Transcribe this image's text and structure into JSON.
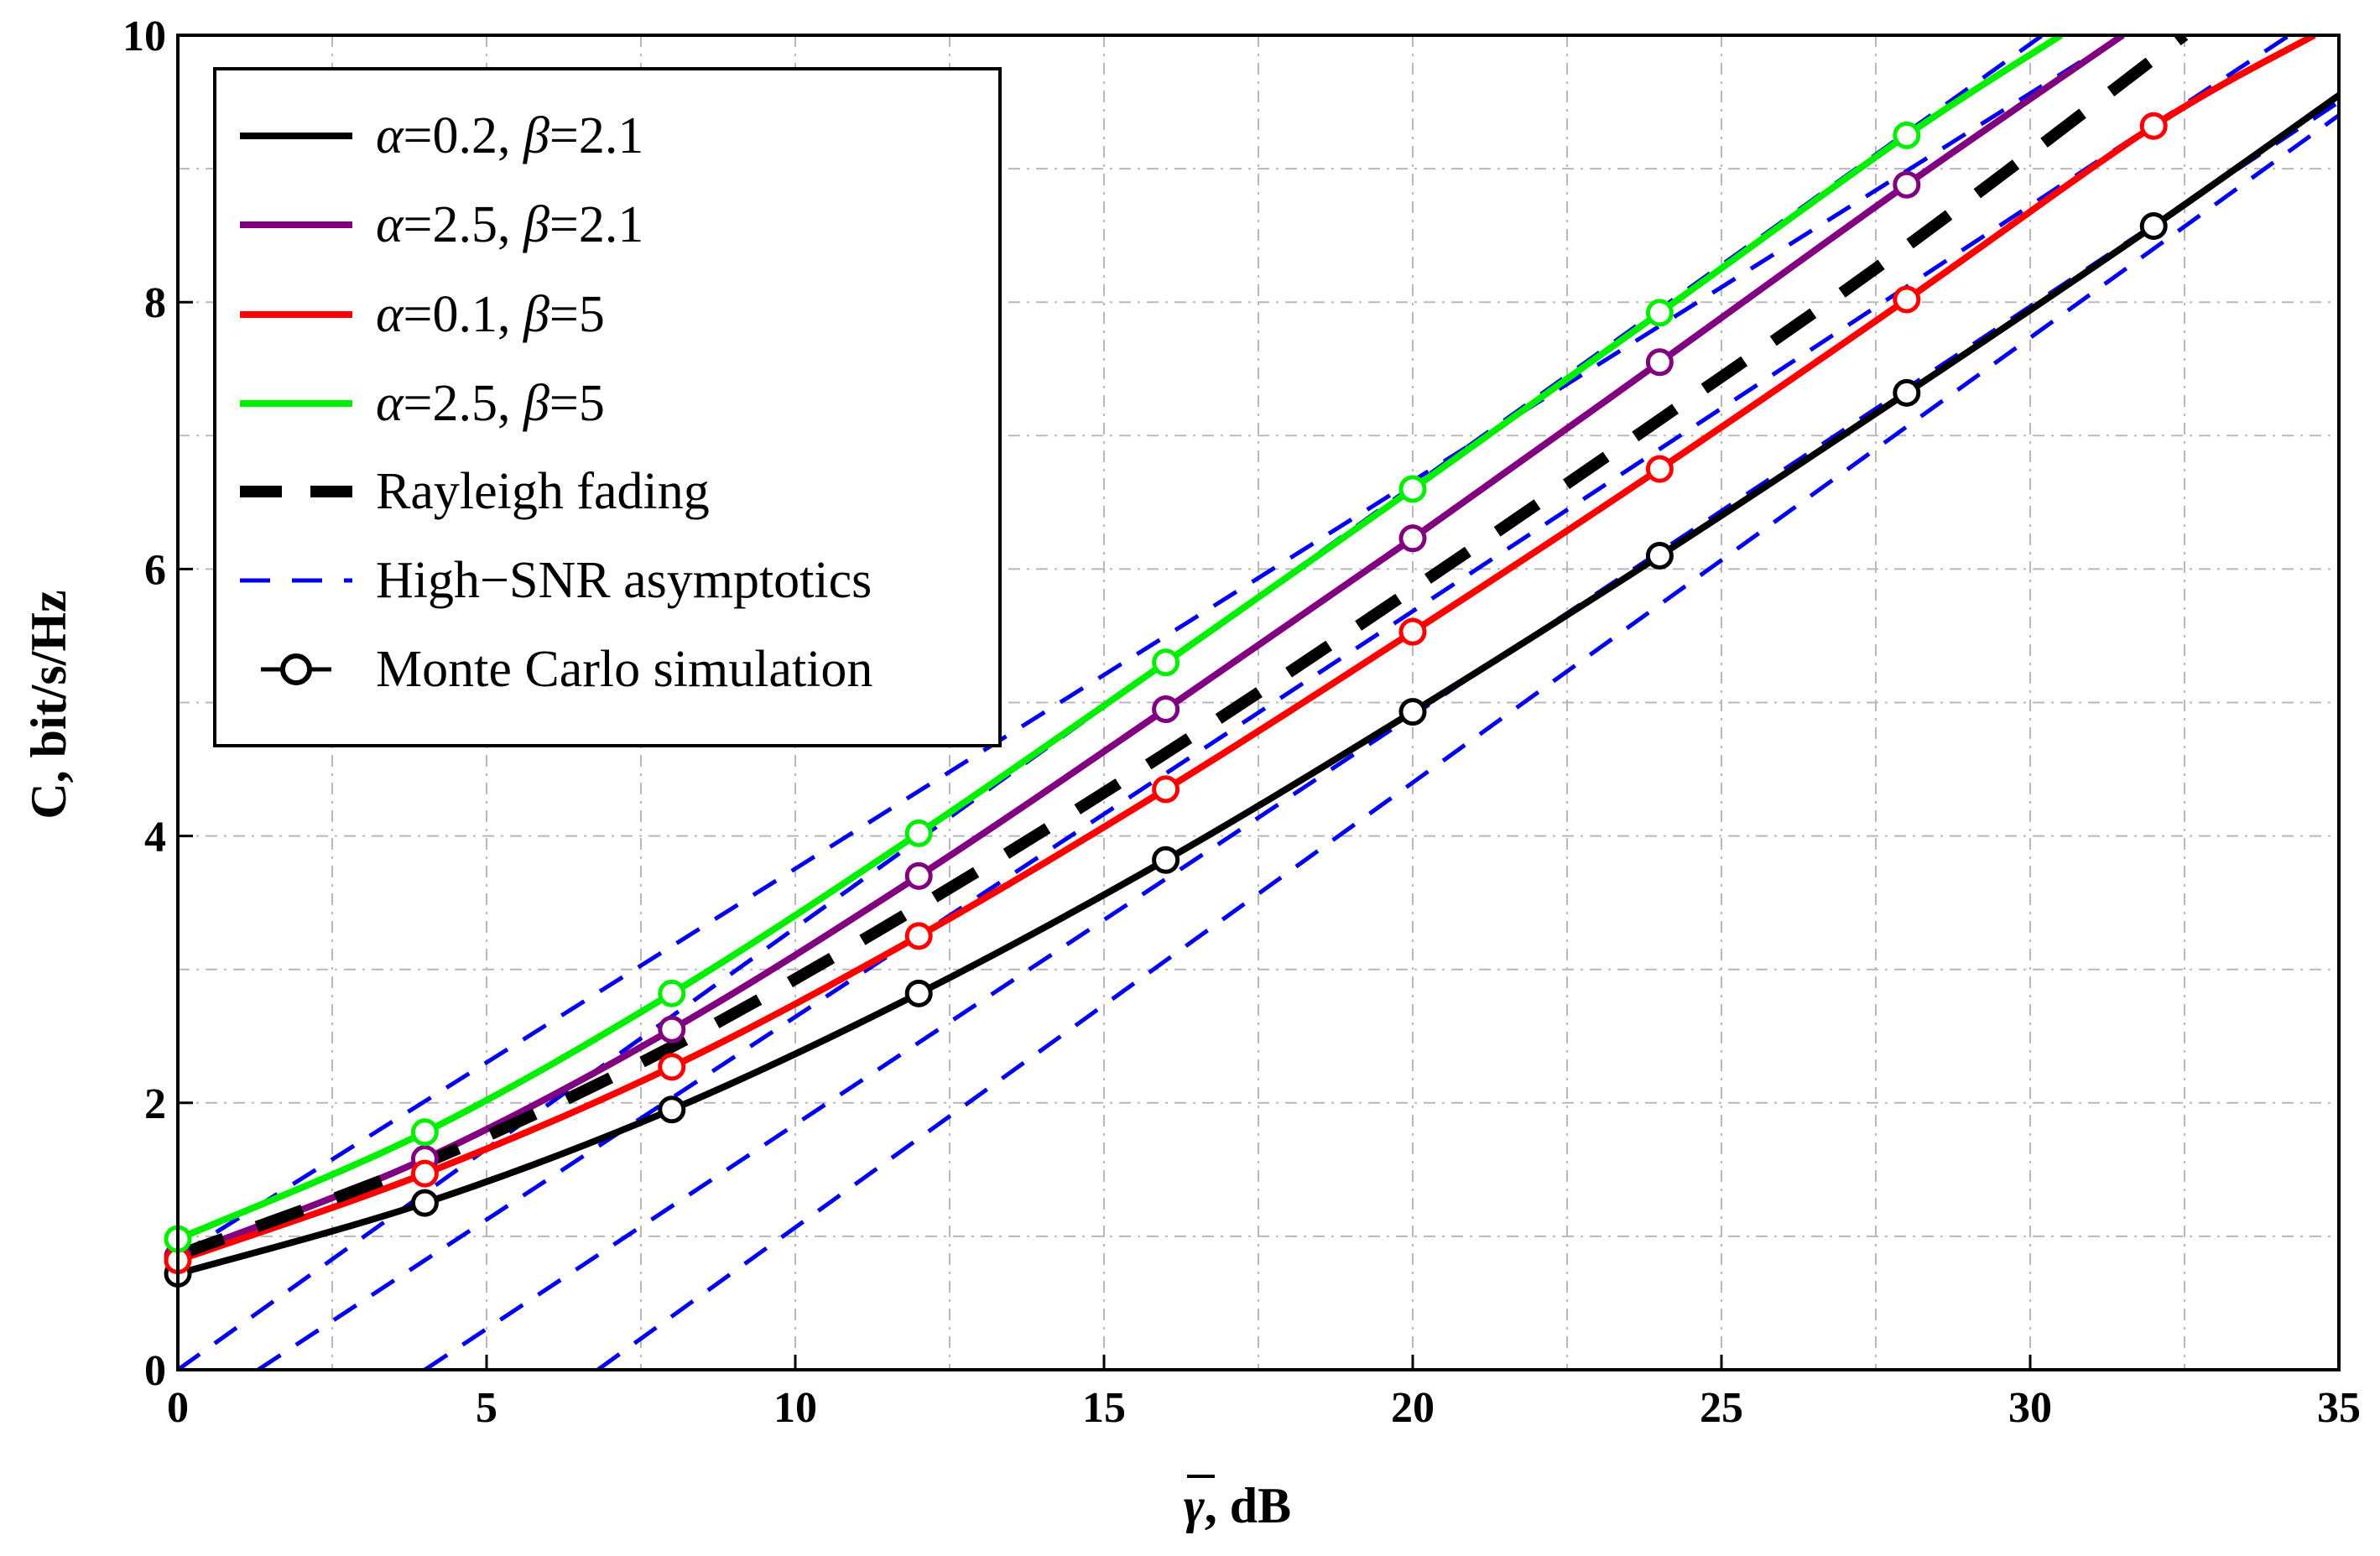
{
  "chart_data": {
    "type": "line",
    "title": "",
    "xlabel": ", dB",
    "xlabel_symbol": "γ",
    "ylabel": "C, bit/s/Hz",
    "xlim": [
      0,
      35
    ],
    "ylim": [
      0,
      10
    ],
    "x_ticks": [
      0,
      5,
      10,
      15,
      20,
      25,
      30,
      35
    ],
    "y_ticks": [
      0,
      2,
      4,
      6,
      8,
      10
    ],
    "grid": true,
    "legend_position": "top-left",
    "colors": {
      "black": "#000000",
      "purple": "#800080",
      "red": "#ff0000",
      "green": "#00ee00",
      "blue": "#0000ee"
    },
    "series": [
      {
        "name": "α=0.2, β=2.1",
        "legend_parts": [
          [
            "α",
            true
          ],
          [
            "=0.2, ",
            false
          ],
          [
            "β",
            true
          ],
          [
            "=2.1",
            false
          ]
        ],
        "color": "#000000",
        "style": "solid",
        "x": [
          0,
          4,
          8,
          12,
          16,
          20,
          24,
          28,
          32,
          35
        ],
        "values": [
          0.72,
          1.25,
          1.95,
          2.82,
          3.82,
          4.93,
          6.1,
          7.32,
          8.57,
          9.55
        ],
        "markers_x": [
          0,
          4,
          8,
          12,
          16,
          20,
          24,
          28,
          32
        ],
        "markers_y": [
          0.72,
          1.25,
          1.95,
          2.82,
          3.82,
          4.93,
          6.1,
          7.32,
          8.57
        ]
      },
      {
        "name": "α=2.5, β=2.1",
        "legend_parts": [
          [
            "α",
            true
          ],
          [
            "=2.5, ",
            false
          ],
          [
            "β",
            true
          ],
          [
            "=2.1",
            false
          ]
        ],
        "color": "#800080",
        "style": "solid",
        "x": [
          0,
          4,
          8,
          12,
          16,
          20,
          24,
          28,
          31.5
        ],
        "values": [
          0.85,
          1.58,
          2.55,
          3.7,
          4.95,
          6.23,
          7.55,
          8.88,
          10.0
        ],
        "markers_x": [
          0,
          4,
          8,
          12,
          16,
          20,
          24,
          28
        ],
        "markers_y": [
          0.85,
          1.58,
          2.55,
          3.7,
          4.95,
          6.23,
          7.55,
          8.88
        ]
      },
      {
        "name": "α=0.1, β=5",
        "legend_parts": [
          [
            "α",
            true
          ],
          [
            "=0.1, ",
            false
          ],
          [
            "β",
            true
          ],
          [
            "=5",
            false
          ]
        ],
        "color": "#ff0000",
        "style": "solid",
        "x": [
          0,
          4,
          8,
          12,
          16,
          20,
          24,
          28,
          32,
          34.6
        ],
        "values": [
          0.82,
          1.47,
          2.27,
          3.25,
          4.35,
          5.53,
          6.75,
          8.02,
          9.32,
          10.0
        ],
        "markers_x": [
          0,
          4,
          8,
          12,
          16,
          20,
          24,
          28,
          32
        ],
        "markers_y": [
          0.82,
          1.47,
          2.27,
          3.25,
          4.35,
          5.53,
          6.75,
          8.02,
          9.32
        ]
      },
      {
        "name": "α=2.5, β=5",
        "legend_parts": [
          [
            "α",
            true
          ],
          [
            "=2.5, ",
            false
          ],
          [
            "β",
            true
          ],
          [
            "=5",
            false
          ]
        ],
        "color": "#00ee00",
        "style": "solid",
        "x": [
          0,
          4,
          8,
          12,
          16,
          20,
          24,
          28,
          30.5
        ],
        "values": [
          0.98,
          1.78,
          2.82,
          4.02,
          5.3,
          6.6,
          7.92,
          9.25,
          10.0
        ],
        "markers_x": [
          0,
          4,
          8,
          12,
          16,
          20,
          24,
          28
        ],
        "markers_y": [
          0.98,
          1.78,
          2.82,
          4.02,
          5.3,
          6.6,
          7.92,
          9.25
        ]
      },
      {
        "name": "Rayleigh fading",
        "color": "#000000",
        "style": "thick-dash",
        "x": [
          0,
          4,
          8,
          12,
          16,
          20,
          24,
          28,
          32.5
        ],
        "values": [
          0.86,
          1.55,
          2.42,
          3.47,
          4.62,
          5.85,
          7.12,
          8.42,
          10.0
        ]
      },
      {
        "name": "High−SNR asymptotics",
        "color": "#0000ee",
        "style": "dash",
        "lines": [
          {
            "x": [
              0,
              30.2
            ],
            "values": [
              0.0,
              10.0
            ]
          },
          {
            "x": [
              1.3,
              34.2
            ],
            "values": [
              0.0,
              10.0
            ]
          },
          {
            "x": [
              4.0,
              35
            ],
            "values": [
              0.0,
              9.5
            ]
          },
          {
            "x": [
              6.8,
              35
            ],
            "values": [
              0.0,
              9.4
            ]
          },
          {
            "x": [
              0,
              31.5
            ],
            "values": [
              0.85,
              10.0
            ]
          }
        ]
      },
      {
        "name": "Monte Carlo simulation",
        "color": "#000000",
        "style": "marker-circle"
      }
    ]
  }
}
